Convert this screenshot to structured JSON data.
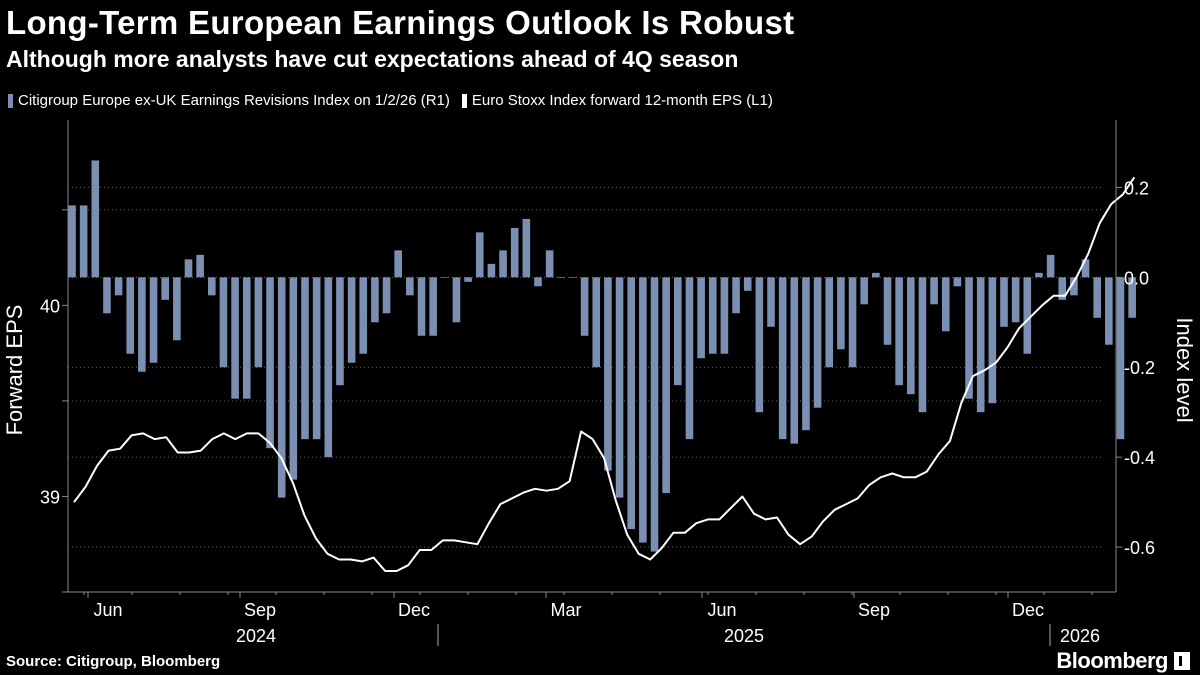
{
  "title": "Long-Term European Earnings Outlook Is Robust",
  "subtitle": "Although more analysts have cut expectations ahead of 4Q season",
  "footer": {
    "source": "Source: Citigroup, Bloomberg",
    "brand": "Bloomberg"
  },
  "colors": {
    "background": "#000000",
    "bars": "#7b8fb3",
    "line": "#ffffff",
    "grid": "#666666",
    "text": "#ffffff"
  },
  "chart_data": {
    "type": "bar+line",
    "title": "Long-Term European Earnings Outlook Is Robust",
    "left_axis": {
      "label": "Forward EPS",
      "ticks": [
        "40",
        "39"
      ],
      "range": [
        38.5,
        40.97
      ]
    },
    "right_axis": {
      "label": "Index level",
      "ticks": [
        "0.2",
        "0.0",
        "-0.2",
        "-0.4",
        "-0.6"
      ],
      "range": [
        -0.7,
        0.35
      ]
    },
    "x_axis": {
      "months": [
        "Jun",
        "Sep",
        "Dec",
        "Mar",
        "Jun",
        "Sep",
        "Dec"
      ],
      "years": [
        "2024",
        "2025",
        "2026"
      ]
    },
    "series": [
      {
        "name": "Citigroup Europe ex-UK Earnings Revisions Index on 1/2/26 (R1)",
        "type": "bar",
        "axis": "right",
        "values": [
          0.16,
          0.16,
          0.26,
          -0.08,
          -0.04,
          -0.17,
          -0.21,
          -0.19,
          -0.05,
          -0.14,
          0.04,
          0.05,
          -0.04,
          -0.2,
          -0.27,
          -0.27,
          -0.2,
          -0.38,
          -0.49,
          -0.45,
          -0.36,
          -0.36,
          -0.4,
          -0.24,
          -0.19,
          -0.17,
          -0.1,
          -0.08,
          0.06,
          -0.04,
          -0.13,
          -0.13,
          0.0,
          -0.1,
          -0.01,
          0.1,
          0.03,
          0.06,
          0.11,
          0.13,
          -0.02,
          0.06,
          0.0,
          0.0,
          -0.13,
          -0.2,
          -0.43,
          -0.49,
          -0.56,
          -0.59,
          -0.61,
          -0.48,
          -0.24,
          -0.36,
          -0.18,
          -0.17,
          -0.17,
          -0.08,
          -0.03,
          -0.3,
          -0.11,
          -0.36,
          -0.37,
          -0.34,
          -0.29,
          -0.2,
          -0.16,
          -0.2,
          -0.06,
          0.01,
          -0.15,
          -0.24,
          -0.26,
          -0.3,
          -0.06,
          -0.12,
          -0.02,
          -0.27,
          -0.3,
          -0.28,
          -0.11,
          -0.1,
          -0.17,
          0.01,
          0.05,
          -0.05,
          -0.04,
          0.04,
          -0.09,
          -0.15,
          -0.36,
          -0.09
        ]
      },
      {
        "name": "Euro Stoxx Index forward 12-month EPS (L1)",
        "type": "line",
        "axis": "left",
        "values": [
          38.97,
          39.05,
          39.16,
          39.24,
          39.25,
          39.32,
          39.33,
          39.3,
          39.31,
          39.23,
          39.23,
          39.24,
          39.3,
          39.33,
          39.3,
          39.33,
          39.33,
          39.28,
          39.2,
          39.07,
          38.9,
          38.78,
          38.7,
          38.67,
          38.67,
          38.66,
          38.68,
          38.61,
          38.61,
          38.64,
          38.72,
          38.72,
          38.77,
          38.77,
          38.76,
          38.75,
          38.86,
          38.96,
          38.99,
          39.02,
          39.04,
          39.03,
          39.04,
          39.08,
          39.34,
          39.3,
          39.2,
          38.98,
          38.8,
          38.7,
          38.67,
          38.73,
          38.81,
          38.81,
          38.86,
          38.88,
          38.88,
          38.94,
          39.0,
          38.91,
          38.88,
          38.89,
          38.8,
          38.75,
          38.79,
          38.87,
          38.93,
          38.96,
          38.99,
          39.06,
          39.1,
          39.12,
          39.1,
          39.1,
          39.13,
          39.22,
          39.29,
          39.49,
          39.63,
          39.66,
          39.7,
          39.78,
          39.88,
          39.94,
          40.0,
          40.05,
          40.05,
          40.15,
          40.27,
          40.43,
          40.53,
          40.58,
          40.67
        ]
      }
    ]
  }
}
